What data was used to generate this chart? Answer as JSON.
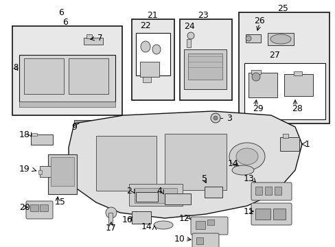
{
  "bg": "#ffffff",
  "fw": 4.89,
  "fh": 3.6,
  "dpi": 100,
  "gray_fill": "#e8e8e8",
  "white_fill": "#ffffff",
  "line_color": "#111111",
  "comp_fill": "#cccccc",
  "comp_edge": "#333333"
}
